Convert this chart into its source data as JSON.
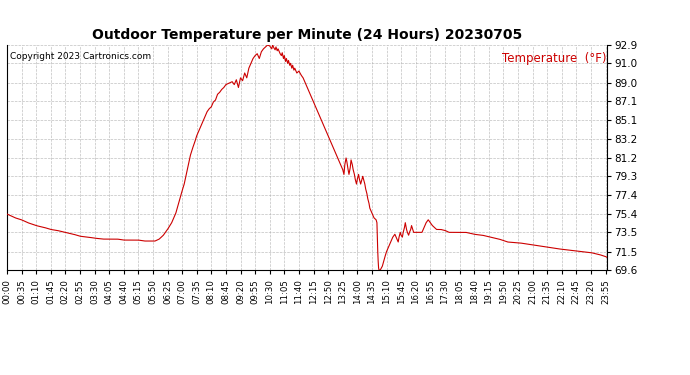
{
  "title": "Outdoor Temperature per Minute (24 Hours) 20230705",
  "copyright_text": "Copyright 2023 Cartronics.com",
  "legend_label": "Temperature  (°F)",
  "line_color": "#cc0000",
  "background_color": "#ffffff",
  "grid_color": "#b0b0b0",
  "yticks": [
    69.6,
    71.5,
    73.5,
    75.4,
    77.4,
    79.3,
    81.2,
    83.2,
    85.1,
    87.1,
    89.0,
    91.0,
    92.9
  ],
  "ylim": [
    69.6,
    92.9
  ],
  "total_minutes": 1440,
  "xtick_interval": 35,
  "keypoints": [
    [
      0,
      75.4
    ],
    [
      10,
      75.2
    ],
    [
      20,
      75.0
    ],
    [
      35,
      74.8
    ],
    [
      50,
      74.5
    ],
    [
      70,
      74.2
    ],
    [
      90,
      74.0
    ],
    [
      105,
      73.8
    ],
    [
      120,
      73.7
    ],
    [
      140,
      73.5
    ],
    [
      160,
      73.3
    ],
    [
      175,
      73.1
    ],
    [
      195,
      73.0
    ],
    [
      210,
      72.9
    ],
    [
      230,
      72.8
    ],
    [
      245,
      72.8
    ],
    [
      265,
      72.8
    ],
    [
      280,
      72.7
    ],
    [
      300,
      72.7
    ],
    [
      315,
      72.7
    ],
    [
      330,
      72.6
    ],
    [
      345,
      72.6
    ],
    [
      355,
      72.6
    ],
    [
      365,
      72.8
    ],
    [
      375,
      73.2
    ],
    [
      385,
      73.8
    ],
    [
      395,
      74.5
    ],
    [
      405,
      75.5
    ],
    [
      415,
      77.0
    ],
    [
      420,
      77.8
    ],
    [
      425,
      78.5
    ],
    [
      430,
      79.5
    ],
    [
      435,
      80.5
    ],
    [
      440,
      81.5
    ],
    [
      445,
      82.2
    ],
    [
      450,
      82.8
    ],
    [
      455,
      83.5
    ],
    [
      460,
      84.0
    ],
    [
      465,
      84.5
    ],
    [
      470,
      85.0
    ],
    [
      475,
      85.5
    ],
    [
      480,
      86.0
    ],
    [
      485,
      86.3
    ],
    [
      490,
      86.5
    ],
    [
      495,
      87.0
    ],
    [
      500,
      87.2
    ],
    [
      505,
      87.8
    ],
    [
      510,
      88.0
    ],
    [
      515,
      88.3
    ],
    [
      520,
      88.5
    ],
    [
      525,
      88.8
    ],
    [
      530,
      88.9
    ],
    [
      535,
      89.0
    ],
    [
      540,
      89.1
    ],
    [
      545,
      88.8
    ],
    [
      550,
      89.3
    ],
    [
      555,
      88.5
    ],
    [
      560,
      89.5
    ],
    [
      565,
      89.2
    ],
    [
      570,
      90.0
    ],
    [
      575,
      89.5
    ],
    [
      580,
      90.5
    ],
    [
      585,
      91.0
    ],
    [
      590,
      91.5
    ],
    [
      595,
      91.8
    ],
    [
      600,
      92.0
    ],
    [
      605,
      91.5
    ],
    [
      610,
      92.2
    ],
    [
      615,
      92.5
    ],
    [
      620,
      92.7
    ],
    [
      625,
      92.9
    ],
    [
      630,
      92.8
    ],
    [
      635,
      92.5
    ],
    [
      637,
      92.9
    ],
    [
      640,
      92.6
    ],
    [
      643,
      92.4
    ],
    [
      645,
      92.7
    ],
    [
      648,
      92.3
    ],
    [
      650,
      92.5
    ],
    [
      653,
      92.2
    ],
    [
      655,
      92.0
    ],
    [
      658,
      91.8
    ],
    [
      660,
      92.1
    ],
    [
      663,
      91.5
    ],
    [
      665,
      91.8
    ],
    [
      668,
      91.2
    ],
    [
      670,
      91.5
    ],
    [
      673,
      91.0
    ],
    [
      675,
      91.3
    ],
    [
      678,
      90.8
    ],
    [
      680,
      91.0
    ],
    [
      683,
      90.5
    ],
    [
      685,
      90.8
    ],
    [
      688,
      90.3
    ],
    [
      690,
      90.5
    ],
    [
      695,
      90.0
    ],
    [
      700,
      90.2
    ],
    [
      705,
      89.8
    ],
    [
      710,
      89.5
    ],
    [
      715,
      89.0
    ],
    [
      720,
      88.5
    ],
    [
      725,
      88.0
    ],
    [
      730,
      87.5
    ],
    [
      735,
      87.0
    ],
    [
      740,
      86.5
    ],
    [
      745,
      86.0
    ],
    [
      750,
      85.5
    ],
    [
      755,
      85.0
    ],
    [
      760,
      84.5
    ],
    [
      765,
      84.0
    ],
    [
      770,
      83.5
    ],
    [
      775,
      83.0
    ],
    [
      780,
      82.5
    ],
    [
      785,
      82.0
    ],
    [
      790,
      81.5
    ],
    [
      795,
      81.0
    ],
    [
      800,
      80.5
    ],
    [
      805,
      80.0
    ],
    [
      808,
      79.5
    ],
    [
      810,
      80.5
    ],
    [
      813,
      81.2
    ],
    [
      815,
      80.8
    ],
    [
      817,
      80.2
    ],
    [
      820,
      79.5
    ],
    [
      823,
      80.2
    ],
    [
      825,
      81.0
    ],
    [
      828,
      80.5
    ],
    [
      830,
      80.0
    ],
    [
      833,
      79.5
    ],
    [
      835,
      79.0
    ],
    [
      838,
      78.5
    ],
    [
      840,
      79.0
    ],
    [
      843,
      79.5
    ],
    [
      845,
      79.0
    ],
    [
      848,
      78.5
    ],
    [
      850,
      78.8
    ],
    [
      853,
      79.3
    ],
    [
      855,
      79.0
    ],
    [
      858,
      78.5
    ],
    [
      860,
      78.0
    ],
    [
      863,
      77.5
    ],
    [
      865,
      77.0
    ],
    [
      868,
      76.5
    ],
    [
      870,
      76.0
    ],
    [
      875,
      75.5
    ],
    [
      880,
      75.0
    ],
    [
      885,
      74.8
    ],
    [
      887,
      74.5
    ],
    [
      888,
      73.0
    ],
    [
      889,
      71.5
    ],
    [
      890,
      70.5
    ],
    [
      891,
      69.8
    ],
    [
      892,
      69.6
    ],
    [
      895,
      69.6
    ],
    [
      900,
      70.0
    ],
    [
      905,
      70.8
    ],
    [
      910,
      71.5
    ],
    [
      915,
      72.0
    ],
    [
      920,
      72.5
    ],
    [
      925,
      73.0
    ],
    [
      930,
      73.3
    ],
    [
      933,
      73.0
    ],
    [
      935,
      72.8
    ],
    [
      938,
      72.5
    ],
    [
      940,
      73.0
    ],
    [
      943,
      73.5
    ],
    [
      945,
      73.2
    ],
    [
      948,
      73.0
    ],
    [
      950,
      73.5
    ],
    [
      953,
      74.0
    ],
    [
      955,
      74.5
    ],
    [
      958,
      73.8
    ],
    [
      960,
      73.5
    ],
    [
      963,
      73.2
    ],
    [
      965,
      73.5
    ],
    [
      968,
      73.8
    ],
    [
      970,
      74.2
    ],
    [
      973,
      73.8
    ],
    [
      975,
      73.5
    ],
    [
      980,
      73.5
    ],
    [
      985,
      73.5
    ],
    [
      990,
      73.5
    ],
    [
      995,
      73.5
    ],
    [
      1000,
      74.0
    ],
    [
      1005,
      74.5
    ],
    [
      1010,
      74.8
    ],
    [
      1015,
      74.5
    ],
    [
      1020,
      74.2
    ],
    [
      1025,
      74.0
    ],
    [
      1030,
      73.8
    ],
    [
      1040,
      73.8
    ],
    [
      1050,
      73.7
    ],
    [
      1060,
      73.5
    ],
    [
      1080,
      73.5
    ],
    [
      1100,
      73.5
    ],
    [
      1120,
      73.3
    ],
    [
      1140,
      73.2
    ],
    [
      1160,
      73.0
    ],
    [
      1180,
      72.8
    ],
    [
      1200,
      72.5
    ],
    [
      1230,
      72.4
    ],
    [
      1260,
      72.2
    ],
    [
      1290,
      72.0
    ],
    [
      1320,
      71.8
    ],
    [
      1360,
      71.6
    ],
    [
      1400,
      71.4
    ],
    [
      1420,
      71.2
    ],
    [
      1435,
      71.0
    ],
    [
      1439,
      70.9
    ]
  ]
}
